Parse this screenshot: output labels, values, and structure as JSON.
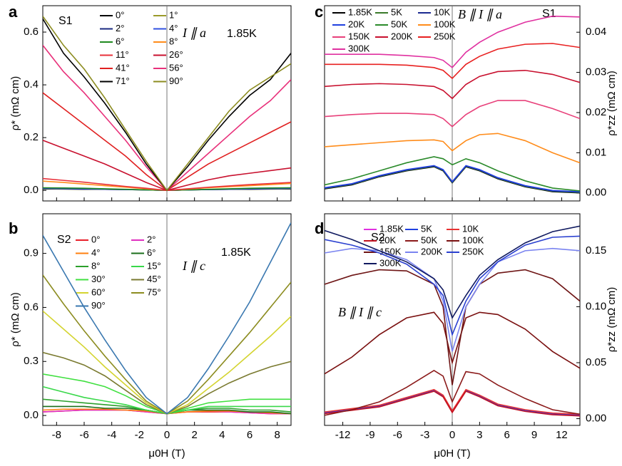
{
  "chart_data": [
    {
      "type": "line",
      "panel_label": "a",
      "ylabel": "ρ* (mΩ cm)",
      "annotations": [
        "S1",
        "I ∥ a",
        "1.85K"
      ],
      "x": [
        -9,
        -7.5,
        -6,
        -4.5,
        -3,
        -1.5,
        0,
        1.5,
        3,
        4.5,
        6,
        7.5,
        9
      ],
      "xlim": [
        -9,
        9
      ],
      "xticks": [
        -8,
        -6,
        -4,
        -2,
        0,
        2,
        4,
        6,
        8
      ],
      "ylim": [
        -0.04,
        0.7
      ],
      "yticks": [
        {
          "value": 0,
          "label": "0.0"
        },
        0.2,
        0.4,
        0.6
      ],
      "y_axis_side": "left",
      "series": [
        {
          "name": "0°",
          "color": "#000000",
          "values": [
            0.005,
            0.005,
            0.004,
            0.004,
            0.003,
            0.002,
            0,
            0.002,
            0.003,
            0.004,
            0.004,
            0.005,
            0.005
          ]
        },
        {
          "name": "1°",
          "color": "#9a9a2a",
          "values": [
            0.006,
            0.005,
            0.005,
            0.004,
            0.003,
            0.002,
            0,
            0.002,
            0.003,
            0.004,
            0.005,
            0.005,
            0.006
          ]
        },
        {
          "name": "2°",
          "color": "#1a2a80",
          "values": [
            0.007,
            0.006,
            0.005,
            0.004,
            0.003,
            0.002,
            0,
            0.002,
            0.003,
            0.004,
            0.005,
            0.006,
            0.007
          ]
        },
        {
          "name": "4°",
          "color": "#3050e0",
          "values": [
            0.008,
            0.007,
            0.006,
            0.005,
            0.003,
            0.002,
            0,
            0.002,
            0.003,
            0.005,
            0.006,
            0.007,
            0.008
          ]
        },
        {
          "name": "6°",
          "color": "#1f8a1f",
          "values": [
            0.01,
            0.009,
            0.008,
            0.006,
            0.004,
            0.002,
            0,
            0.002,
            0.004,
            0.006,
            0.008,
            0.009,
            0.01
          ]
        },
        {
          "name": "8°",
          "color": "#ff8c1a",
          "values": [
            0.035,
            0.03,
            0.024,
            0.018,
            0.012,
            0.006,
            0,
            0.005,
            0.01,
            0.014,
            0.018,
            0.022,
            0.026
          ]
        },
        {
          "name": "11°",
          "color": "#e8303a",
          "values": [
            0.045,
            0.038,
            0.031,
            0.023,
            0.015,
            0.008,
            0,
            0.006,
            0.012,
            0.017,
            0.022,
            0.026,
            0.03
          ]
        },
        {
          "name": "26°",
          "color": "#c8102e",
          "values": [
            0.19,
            0.16,
            0.13,
            0.1,
            0.065,
            0.03,
            0,
            0.02,
            0.04,
            0.055,
            0.065,
            0.075,
            0.085
          ]
        },
        {
          "name": "41°",
          "color": "#e02020",
          "values": [
            0.37,
            0.31,
            0.25,
            0.19,
            0.13,
            0.06,
            0,
            0.05,
            0.1,
            0.14,
            0.18,
            0.22,
            0.26
          ]
        },
        {
          "name": "56°",
          "color": "#e8307a",
          "values": [
            0.55,
            0.45,
            0.37,
            0.28,
            0.19,
            0.09,
            0,
            0.07,
            0.14,
            0.21,
            0.28,
            0.34,
            0.42
          ]
        },
        {
          "name": "71°",
          "color": "#000000",
          "values": [
            0.65,
            0.52,
            0.43,
            0.33,
            0.22,
            0.1,
            0,
            0.09,
            0.19,
            0.28,
            0.36,
            0.42,
            0.52
          ]
        },
        {
          "name": "90°",
          "color": "#8c8c20",
          "values": [
            0.66,
            0.55,
            0.46,
            0.35,
            0.23,
            0.11,
            0,
            0.1,
            0.2,
            0.3,
            0.38,
            0.43,
            0.48
          ]
        }
      ]
    },
    {
      "type": "line",
      "panel_label": "b",
      "ylabel": "ρ* (mΩ cm)",
      "xlabel": "μ0H (T)",
      "annotations": [
        "S2",
        "I ∥ c",
        "1.85K"
      ],
      "x": [
        -9,
        -7.5,
        -6,
        -4.5,
        -3,
        -1.5,
        0,
        1.5,
        3,
        4.5,
        6,
        7.5,
        9
      ],
      "xlim": [
        -9,
        9
      ],
      "xticks": [
        -8,
        -6,
        -4,
        -2,
        0,
        2,
        4,
        6,
        8
      ],
      "ylim": [
        -0.055,
        1.12
      ],
      "yticks": [
        {
          "value": 0,
          "label": "0.0"
        },
        0.3,
        0.6,
        0.9
      ],
      "y_axis_side": "left",
      "series": [
        {
          "name": "0°",
          "color": "#e8202a",
          "values": [
            0.02,
            0.025,
            0.03,
            0.03,
            0.03,
            0.02,
            0.01,
            0.02,
            0.02,
            0.02,
            0.015,
            0.01,
            0.01
          ]
        },
        {
          "name": "2°",
          "color": "#e030c0",
          "values": [
            0.02,
            0.025,
            0.03,
            0.03,
            0.03,
            0.02,
            0.01,
            0.02,
            0.025,
            0.02,
            0.015,
            0.01,
            0.01
          ]
        },
        {
          "name": "4°",
          "color": "#ff7f0e",
          "values": [
            0.03,
            0.035,
            0.035,
            0.035,
            0.03,
            0.025,
            0.01,
            0.02,
            0.025,
            0.025,
            0.02,
            0.015,
            0.01
          ]
        },
        {
          "name": "6°",
          "color": "#1a6e1a",
          "values": [
            0.05,
            0.05,
            0.05,
            0.04,
            0.04,
            0.03,
            0.01,
            0.03,
            0.03,
            0.03,
            0.02,
            0.02,
            0.01
          ]
        },
        {
          "name": "8°",
          "color": "#2ca02c",
          "values": [
            0.09,
            0.08,
            0.07,
            0.06,
            0.05,
            0.03,
            0.01,
            0.03,
            0.04,
            0.04,
            0.03,
            0.03,
            0.02
          ]
        },
        {
          "name": "15°",
          "color": "#39d84a",
          "values": [
            0.16,
            0.13,
            0.1,
            0.08,
            0.06,
            0.03,
            0.01,
            0.03,
            0.05,
            0.05,
            0.05,
            0.05,
            0.05
          ]
        },
        {
          "name": "30°",
          "color": "#40e040",
          "values": [
            0.23,
            0.21,
            0.19,
            0.16,
            0.11,
            0.05,
            0.01,
            0.04,
            0.07,
            0.08,
            0.09,
            0.09,
            0.09
          ]
        },
        {
          "name": "45°",
          "color": "#7a7a30",
          "values": [
            0.35,
            0.32,
            0.28,
            0.22,
            0.14,
            0.06,
            0.01,
            0.05,
            0.12,
            0.18,
            0.23,
            0.27,
            0.3
          ]
        },
        {
          "name": "60°",
          "color": "#d4d430",
          "values": [
            0.58,
            0.48,
            0.38,
            0.27,
            0.17,
            0.07,
            0.01,
            0.06,
            0.15,
            0.24,
            0.34,
            0.44,
            0.55
          ]
        },
        {
          "name": "75°",
          "color": "#8c8c20",
          "values": [
            0.78,
            0.62,
            0.47,
            0.33,
            0.2,
            0.08,
            0.01,
            0.08,
            0.2,
            0.33,
            0.46,
            0.6,
            0.74
          ]
        },
        {
          "name": "90°",
          "color": "#3a78b0",
          "values": [
            1.0,
            0.8,
            0.6,
            0.42,
            0.25,
            0.1,
            0.01,
            0.1,
            0.26,
            0.44,
            0.63,
            0.85,
            1.07
          ]
        }
      ]
    },
    {
      "type": "line",
      "panel_label": "c",
      "ylabel": "ρ*zz (mΩ cm)",
      "annotations": [
        "B ∥ I ∥ a",
        "S1"
      ],
      "x": [
        -14,
        -11,
        -8,
        -5,
        -2,
        -1,
        0,
        1.5,
        3,
        5,
        8,
        11,
        14
      ],
      "xlim": [
        -14,
        14
      ],
      "xticks": [
        -12,
        -9,
        -6,
        -3,
        0,
        3,
        6,
        9,
        12
      ],
      "ylim": [
        -0.002,
        0.0466
      ],
      "yticks": [
        {
          "value": 0,
          "label": "0.00"
        },
        0.01,
        0.02,
        0.03,
        0.04
      ],
      "y_axis_side": "right",
      "series": [
        {
          "name": "1.85K",
          "color": "#000000",
          "values": [
            0.001,
            0.002,
            0.004,
            0.0055,
            0.0065,
            0.0055,
            0.0025,
            0.0065,
            0.0055,
            0.0035,
            0.0015,
            0.0003,
            0
          ]
        },
        {
          "name": "5K",
          "color": "#3a7a2a",
          "values": [
            0.0011,
            0.0021,
            0.0041,
            0.0056,
            0.0066,
            0.0056,
            0.0026,
            0.0066,
            0.0056,
            0.0036,
            0.0016,
            0.0004,
            0.0001
          ]
        },
        {
          "name": "10K",
          "color": "#1a2a90",
          "values": [
            0.0012,
            0.0022,
            0.0042,
            0.0057,
            0.0067,
            0.0057,
            0.0027,
            0.0067,
            0.0057,
            0.0037,
            0.0017,
            0.0005,
            0.0002
          ]
        },
        {
          "name": "20K",
          "color": "#2040e0",
          "values": [
            0.0013,
            0.0023,
            0.0043,
            0.0058,
            0.0068,
            0.0058,
            0.0028,
            0.0068,
            0.0058,
            0.0038,
            0.0018,
            0.0006,
            0.0003
          ]
        },
        {
          "name": "50K",
          "color": "#2a8a2a",
          "values": [
            0.002,
            0.0035,
            0.0055,
            0.0075,
            0.009,
            0.0085,
            0.007,
            0.0085,
            0.0075,
            0.0055,
            0.003,
            0.0012,
            0.0005
          ]
        },
        {
          "name": "100K",
          "color": "#ff8c1a",
          "values": [
            0.0115,
            0.012,
            0.0125,
            0.013,
            0.0132,
            0.0128,
            0.0105,
            0.013,
            0.0145,
            0.0148,
            0.013,
            0.01,
            0.0075
          ]
        },
        {
          "name": "150K",
          "color": "#e8407a",
          "values": [
            0.019,
            0.0195,
            0.0198,
            0.0198,
            0.0195,
            0.0185,
            0.0165,
            0.0195,
            0.0215,
            0.023,
            0.023,
            0.021,
            0.0185
          ]
        },
        {
          "name": "200K",
          "color": "#c8102e",
          "values": [
            0.0265,
            0.027,
            0.0272,
            0.027,
            0.0265,
            0.0255,
            0.0235,
            0.027,
            0.029,
            0.0302,
            0.0305,
            0.0295,
            0.0275
          ]
        },
        {
          "name": "250K",
          "color": "#e82020",
          "values": [
            0.032,
            0.032,
            0.032,
            0.0318,
            0.0312,
            0.0305,
            0.0285,
            0.032,
            0.034,
            0.0358,
            0.037,
            0.0372,
            0.0362
          ]
        },
        {
          "name": "300K",
          "color": "#e030a0",
          "values": [
            0.0345,
            0.0345,
            0.0345,
            0.0342,
            0.0337,
            0.033,
            0.0312,
            0.035,
            0.0375,
            0.04,
            0.0425,
            0.044,
            0.0438
          ]
        }
      ]
    },
    {
      "type": "line",
      "panel_label": "d",
      "ylabel": "ρ*zz (mΩ cm)",
      "xlabel": "μ0H (T)",
      "annotations": [
        "S2",
        "B ∥ I ∥ c"
      ],
      "x": [
        -14,
        -11,
        -8,
        -5,
        -2,
        -1,
        0,
        1.5,
        3,
        5,
        8,
        11,
        14
      ],
      "xlim": [
        -14,
        14
      ],
      "xticks": [
        -12,
        -9,
        -6,
        -3,
        0,
        3,
        6,
        9,
        12
      ],
      "ylim": [
        -0.006,
        0.183
      ],
      "yticks": [
        {
          "value": 0,
          "label": "0.00"
        },
        0.05,
        {
          "value": 0.1,
          "label": "0.10"
        },
        0.15
      ],
      "y_axis_side": "right",
      "series": [
        {
          "name": "1.85K",
          "color": "#e030e0",
          "values": [
            0.005,
            0.008,
            0.011,
            0.018,
            0.025,
            0.02,
            0.006,
            0.025,
            0.02,
            0.012,
            0.007,
            0.004,
            0.003
          ]
        },
        {
          "name": "5K",
          "color": "#2040e0",
          "values": [
            0.0055,
            0.0085,
            0.0115,
            0.0185,
            0.0255,
            0.0205,
            0.0065,
            0.0255,
            0.0205,
            0.0125,
            0.0075,
            0.0045,
            0.0035
          ]
        },
        {
          "name": "10K",
          "color": "#e83030",
          "values": [
            0.006,
            0.009,
            0.012,
            0.019,
            0.026,
            0.021,
            0.007,
            0.026,
            0.021,
            0.013,
            0.008,
            0.005,
            0.004
          ]
        },
        {
          "name": "20K",
          "color": "#c01020",
          "values": [
            0.0045,
            0.0075,
            0.0105,
            0.0175,
            0.0245,
            0.0195,
            0.0055,
            0.0245,
            0.0195,
            0.0115,
            0.0065,
            0.0035,
            0.0025
          ]
        },
        {
          "name": "50K",
          "color": "#8b1a1a",
          "values": [
            0.003,
            0.008,
            0.015,
            0.028,
            0.043,
            0.038,
            0.015,
            0.042,
            0.04,
            0.03,
            0.018,
            0.008,
            0.004
          ]
        },
        {
          "name": "100K",
          "color": "#7a1010",
          "values": [
            0.04,
            0.055,
            0.075,
            0.09,
            0.095,
            0.085,
            0.05,
            0.09,
            0.095,
            0.093,
            0.08,
            0.06,
            0.045
          ]
        },
        {
          "name": "150K",
          "color": "#6e1515",
          "values": [
            0.12,
            0.128,
            0.133,
            0.132,
            0.12,
            0.1,
            0.03,
            0.1,
            0.12,
            0.13,
            0.133,
            0.125,
            0.105
          ]
        },
        {
          "name": "200K",
          "color": "#7a84f0",
          "values": [
            0.148,
            0.152,
            0.15,
            0.142,
            0.125,
            0.105,
            0.06,
            0.1,
            0.12,
            0.14,
            0.15,
            0.152,
            0.15
          ]
        },
        {
          "name": "250K",
          "color": "#2a40d0",
          "values": [
            0.16,
            0.155,
            0.148,
            0.138,
            0.12,
            0.11,
            0.075,
            0.105,
            0.125,
            0.14,
            0.155,
            0.162,
            0.163
          ]
        },
        {
          "name": "300K",
          "color": "#101a60",
          "values": [
            0.168,
            0.16,
            0.15,
            0.14,
            0.125,
            0.115,
            0.09,
            0.11,
            0.128,
            0.142,
            0.157,
            0.167,
            0.172
          ]
        }
      ]
    }
  ]
}
